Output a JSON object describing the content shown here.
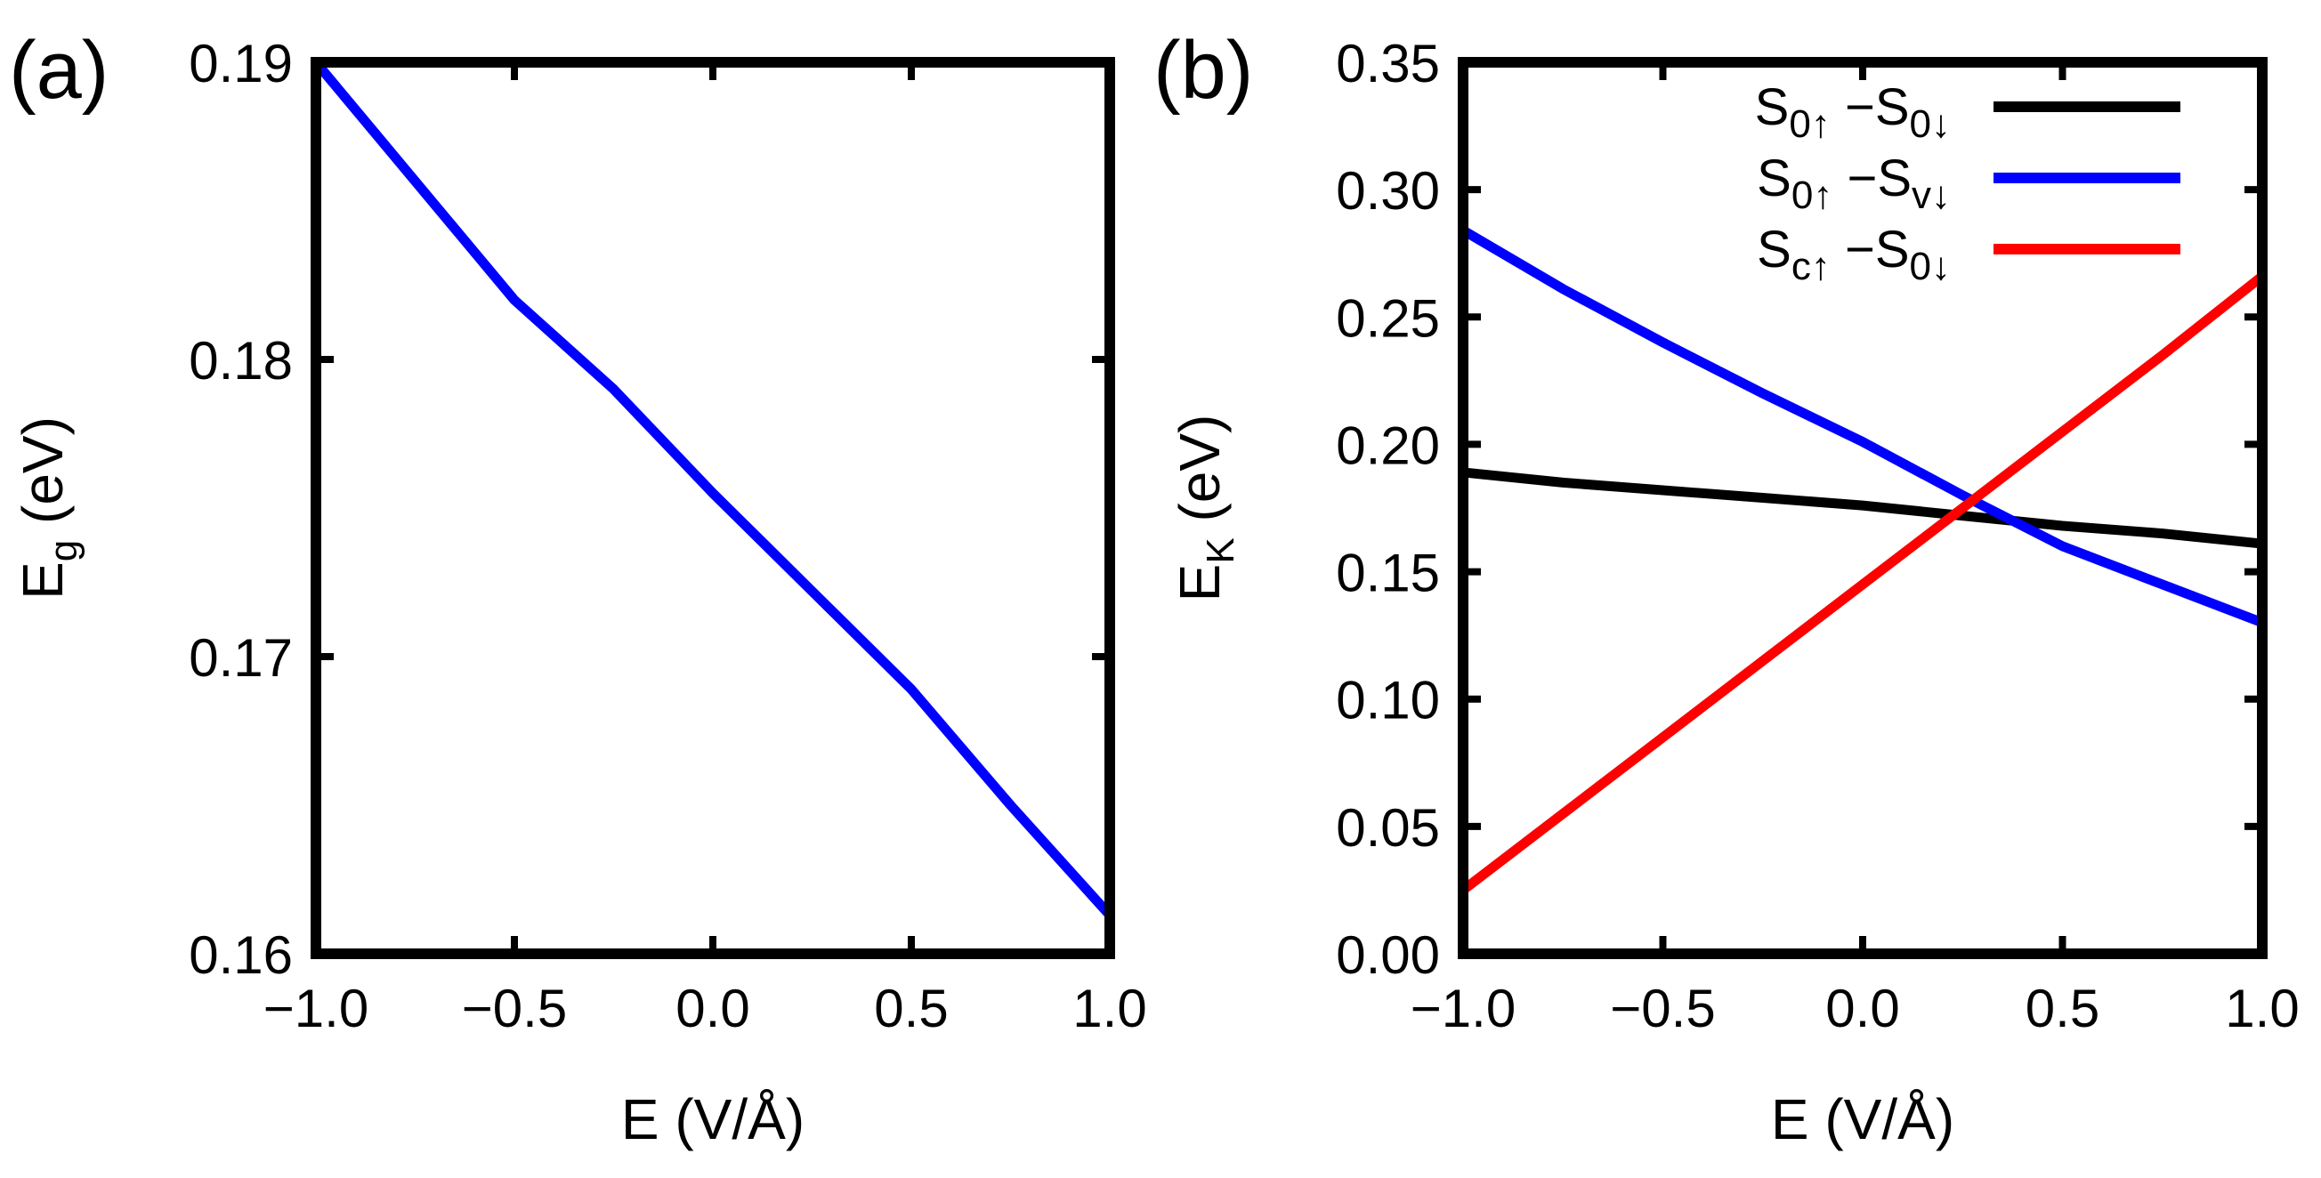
{
  "figure": {
    "panels": [
      "(a)",
      "(b)"
    ]
  },
  "chart_data": [
    {
      "type": "line",
      "panel_label": "(a)",
      "xlabel": "E (V/Å)",
      "ylabel": {
        "main": "E",
        "sub": "g",
        "unit": " (eV)"
      },
      "xlim": [
        -1.0,
        1.0
      ],
      "ylim": [
        0.16,
        0.19
      ],
      "xticks": [
        -1.0,
        -0.5,
        0.0,
        0.5,
        1.0
      ],
      "xtick_labels": [
        "−1.0",
        "−0.5",
        "0.0",
        "0.5",
        "1.0"
      ],
      "yticks": [
        0.16,
        0.17,
        0.18,
        0.19
      ],
      "ytick_labels": [
        "0.16",
        "0.17",
        "0.18",
        "0.19"
      ],
      "series": [
        {
          "name": "E_g",
          "color": "#0000ff",
          "x": [
            -1.0,
            -0.75,
            -0.5,
            -0.25,
            0.0,
            0.25,
            0.5,
            0.75,
            1.0
          ],
          "y": [
            0.19,
            0.186,
            0.182,
            0.179,
            0.1755,
            0.1722,
            0.1689,
            0.165,
            0.1613
          ]
        }
      ]
    },
    {
      "type": "line",
      "panel_label": "(b)",
      "xlabel": "E (V/Å)",
      "ylabel": {
        "main": "E",
        "sub": "K",
        "unit": " (eV)"
      },
      "xlim": [
        -1.0,
        1.0
      ],
      "ylim": [
        0.0,
        0.35
      ],
      "xticks": [
        -1.0,
        -0.5,
        0.0,
        0.5,
        1.0
      ],
      "xtick_labels": [
        "−1.0",
        "−0.5",
        "0.0",
        "0.5",
        "1.0"
      ],
      "yticks": [
        0.0,
        0.05,
        0.1,
        0.15,
        0.2,
        0.25,
        0.3,
        0.35
      ],
      "ytick_labels": [
        "0.00",
        "0.05",
        "0.10",
        "0.15",
        "0.20",
        "0.25",
        "0.30",
        "0.35"
      ],
      "legend_position": "top-right",
      "series": [
        {
          "name": "S0↑−S0↓",
          "legend": [
            {
              "t": "S"
            },
            {
              "t": "0↑",
              "sub": true
            },
            {
              "t": " −S"
            },
            {
              "t": "0↓",
              "sub": true
            }
          ],
          "color": "#000000",
          "x": [
            -1.0,
            -0.75,
            -0.5,
            -0.25,
            0.0,
            0.25,
            0.5,
            0.75,
            1.0
          ],
          "y": [
            0.189,
            0.185,
            0.182,
            0.179,
            0.176,
            0.172,
            0.168,
            0.165,
            0.161
          ]
        },
        {
          "name": "S0↑−Sv↓",
          "legend": [
            {
              "t": "S"
            },
            {
              "t": "0↑",
              "sub": true
            },
            {
              "t": " −S"
            },
            {
              "t": "v↓",
              "sub": true
            }
          ],
          "color": "#0000ff",
          "x": [
            -1.0,
            -0.75,
            -0.5,
            -0.25,
            0.0,
            0.25,
            0.5,
            0.75,
            1.0
          ],
          "y": [
            0.284,
            0.261,
            0.24,
            0.22,
            0.201,
            0.18,
            0.16,
            0.145,
            0.13
          ]
        },
        {
          "name": "Sc↑−S0↓",
          "legend": [
            {
              "t": "S"
            },
            {
              "t": "c↑",
              "sub": true
            },
            {
              "t": " −S"
            },
            {
              "t": "0↓",
              "sub": true
            }
          ],
          "color": "#ff0000",
          "x": [
            -1.0,
            -0.75,
            -0.5,
            -0.25,
            0.0,
            0.25,
            0.5,
            0.75,
            1.0
          ],
          "y": [
            0.025,
            0.055,
            0.085,
            0.115,
            0.145,
            0.175,
            0.205,
            0.235,
            0.266
          ]
        }
      ]
    }
  ]
}
